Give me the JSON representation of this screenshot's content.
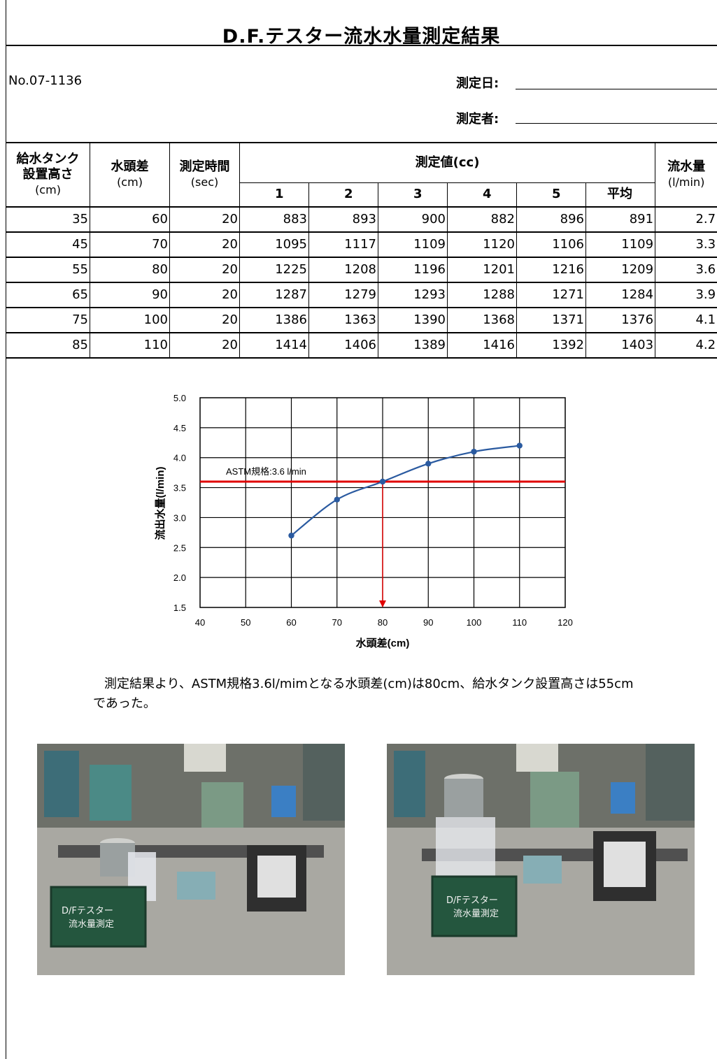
{
  "title": "D.F.テスター流水水量測定結果",
  "doc_no": "No.07-1136",
  "meta": {
    "date_label": "測定日:",
    "measurer_label": "測定者:"
  },
  "table": {
    "headers": {
      "tank_height": "給水タンク設置高さ",
      "tank_height_unit": "(cm)",
      "head_diff": "水頭差",
      "head_diff_unit": "(cm)",
      "time": "測定時間",
      "time_unit": "(sec)",
      "measured": "測定値(cc)",
      "flow": "流水量",
      "flow_unit": "(l/min)",
      "sub": [
        "1",
        "2",
        "3",
        "4",
        "5",
        "平均"
      ]
    },
    "rows": [
      [
        "35",
        "60",
        "20",
        "883",
        "893",
        "900",
        "882",
        "896",
        "891",
        "2.7"
      ],
      [
        "45",
        "70",
        "20",
        "1095",
        "1117",
        "1109",
        "1120",
        "1106",
        "1109",
        "3.3"
      ],
      [
        "55",
        "80",
        "20",
        "1225",
        "1208",
        "1196",
        "1201",
        "1216",
        "1209",
        "3.6"
      ],
      [
        "65",
        "90",
        "20",
        "1287",
        "1279",
        "1293",
        "1288",
        "1271",
        "1284",
        "3.9"
      ],
      [
        "75",
        "100",
        "20",
        "1386",
        "1363",
        "1390",
        "1368",
        "1371",
        "1376",
        "4.1"
      ],
      [
        "85",
        "110",
        "20",
        "1414",
        "1406",
        "1389",
        "1416",
        "1392",
        "1403",
        "4.2"
      ]
    ]
  },
  "chart_data": {
    "type": "line",
    "xlabel": "水頭差(cm)",
    "ylabel": "流出水量(l/min)",
    "xlim": [
      40,
      120
    ],
    "ylim": [
      1.5,
      5.0
    ],
    "x_ticks": [
      "40",
      "50",
      "60",
      "70",
      "80",
      "90",
      "100",
      "110",
      "120"
    ],
    "y_ticks": [
      "5.0",
      "4.5",
      "4.0",
      "3.5",
      "3.0",
      "2.5",
      "2.0",
      "1.5"
    ],
    "grid": true,
    "series": [
      {
        "x": [
          60,
          70,
          80,
          90,
          100,
          110
        ],
        "values": [
          2.7,
          3.3,
          3.6,
          3.9,
          4.1,
          4.2
        ],
        "color": "#2a5aa0"
      }
    ],
    "reference_line": {
      "y": 3.6,
      "label": "ASTM規格:3.6 l/min",
      "color": "#e00000"
    },
    "drop_arrow": {
      "x": 80,
      "color": "#e00000"
    }
  },
  "result_text": "測定結果より、ASTM規格3.6l/mimとなる水頭差(cm)は80cm、給水タンク設置高さは55cmであった。",
  "photos": [
    {
      "board_line1": "D/Fテスター",
      "board_line2": "流水量測定"
    },
    {
      "board_line1": "D/Fテスター",
      "board_line2": "流水量測定"
    }
  ]
}
